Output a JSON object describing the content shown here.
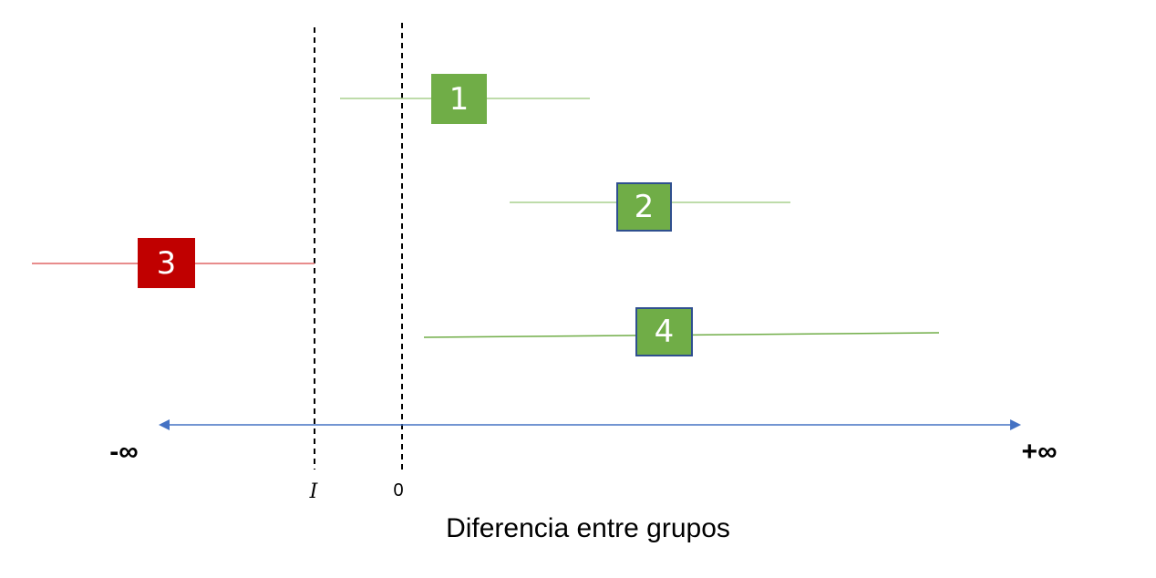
{
  "axis": {
    "left_label": "-∞",
    "right_label": "+∞",
    "title": "Diferencia entre grupos",
    "color": "#4472C4"
  },
  "reference_lines": [
    {
      "id": "margin",
      "label": "I"
    },
    {
      "id": "zero",
      "label": "0"
    }
  ],
  "results": [
    {
      "id": "1",
      "label": "1",
      "color": "#70AD47",
      "line_color": "#A9D18E",
      "border": "#70AD47"
    },
    {
      "id": "2",
      "label": "2",
      "color": "#70AD47",
      "line_color": "#A9D18E",
      "border": "#2F4F8F"
    },
    {
      "id": "3",
      "label": "3",
      "color": "#C00000",
      "line_color": "#E06666",
      "border": "#C00000"
    },
    {
      "id": "4",
      "label": "4",
      "color": "#70AD47",
      "line_color": "#70AD47",
      "border": "#2F4F8F"
    }
  ]
}
